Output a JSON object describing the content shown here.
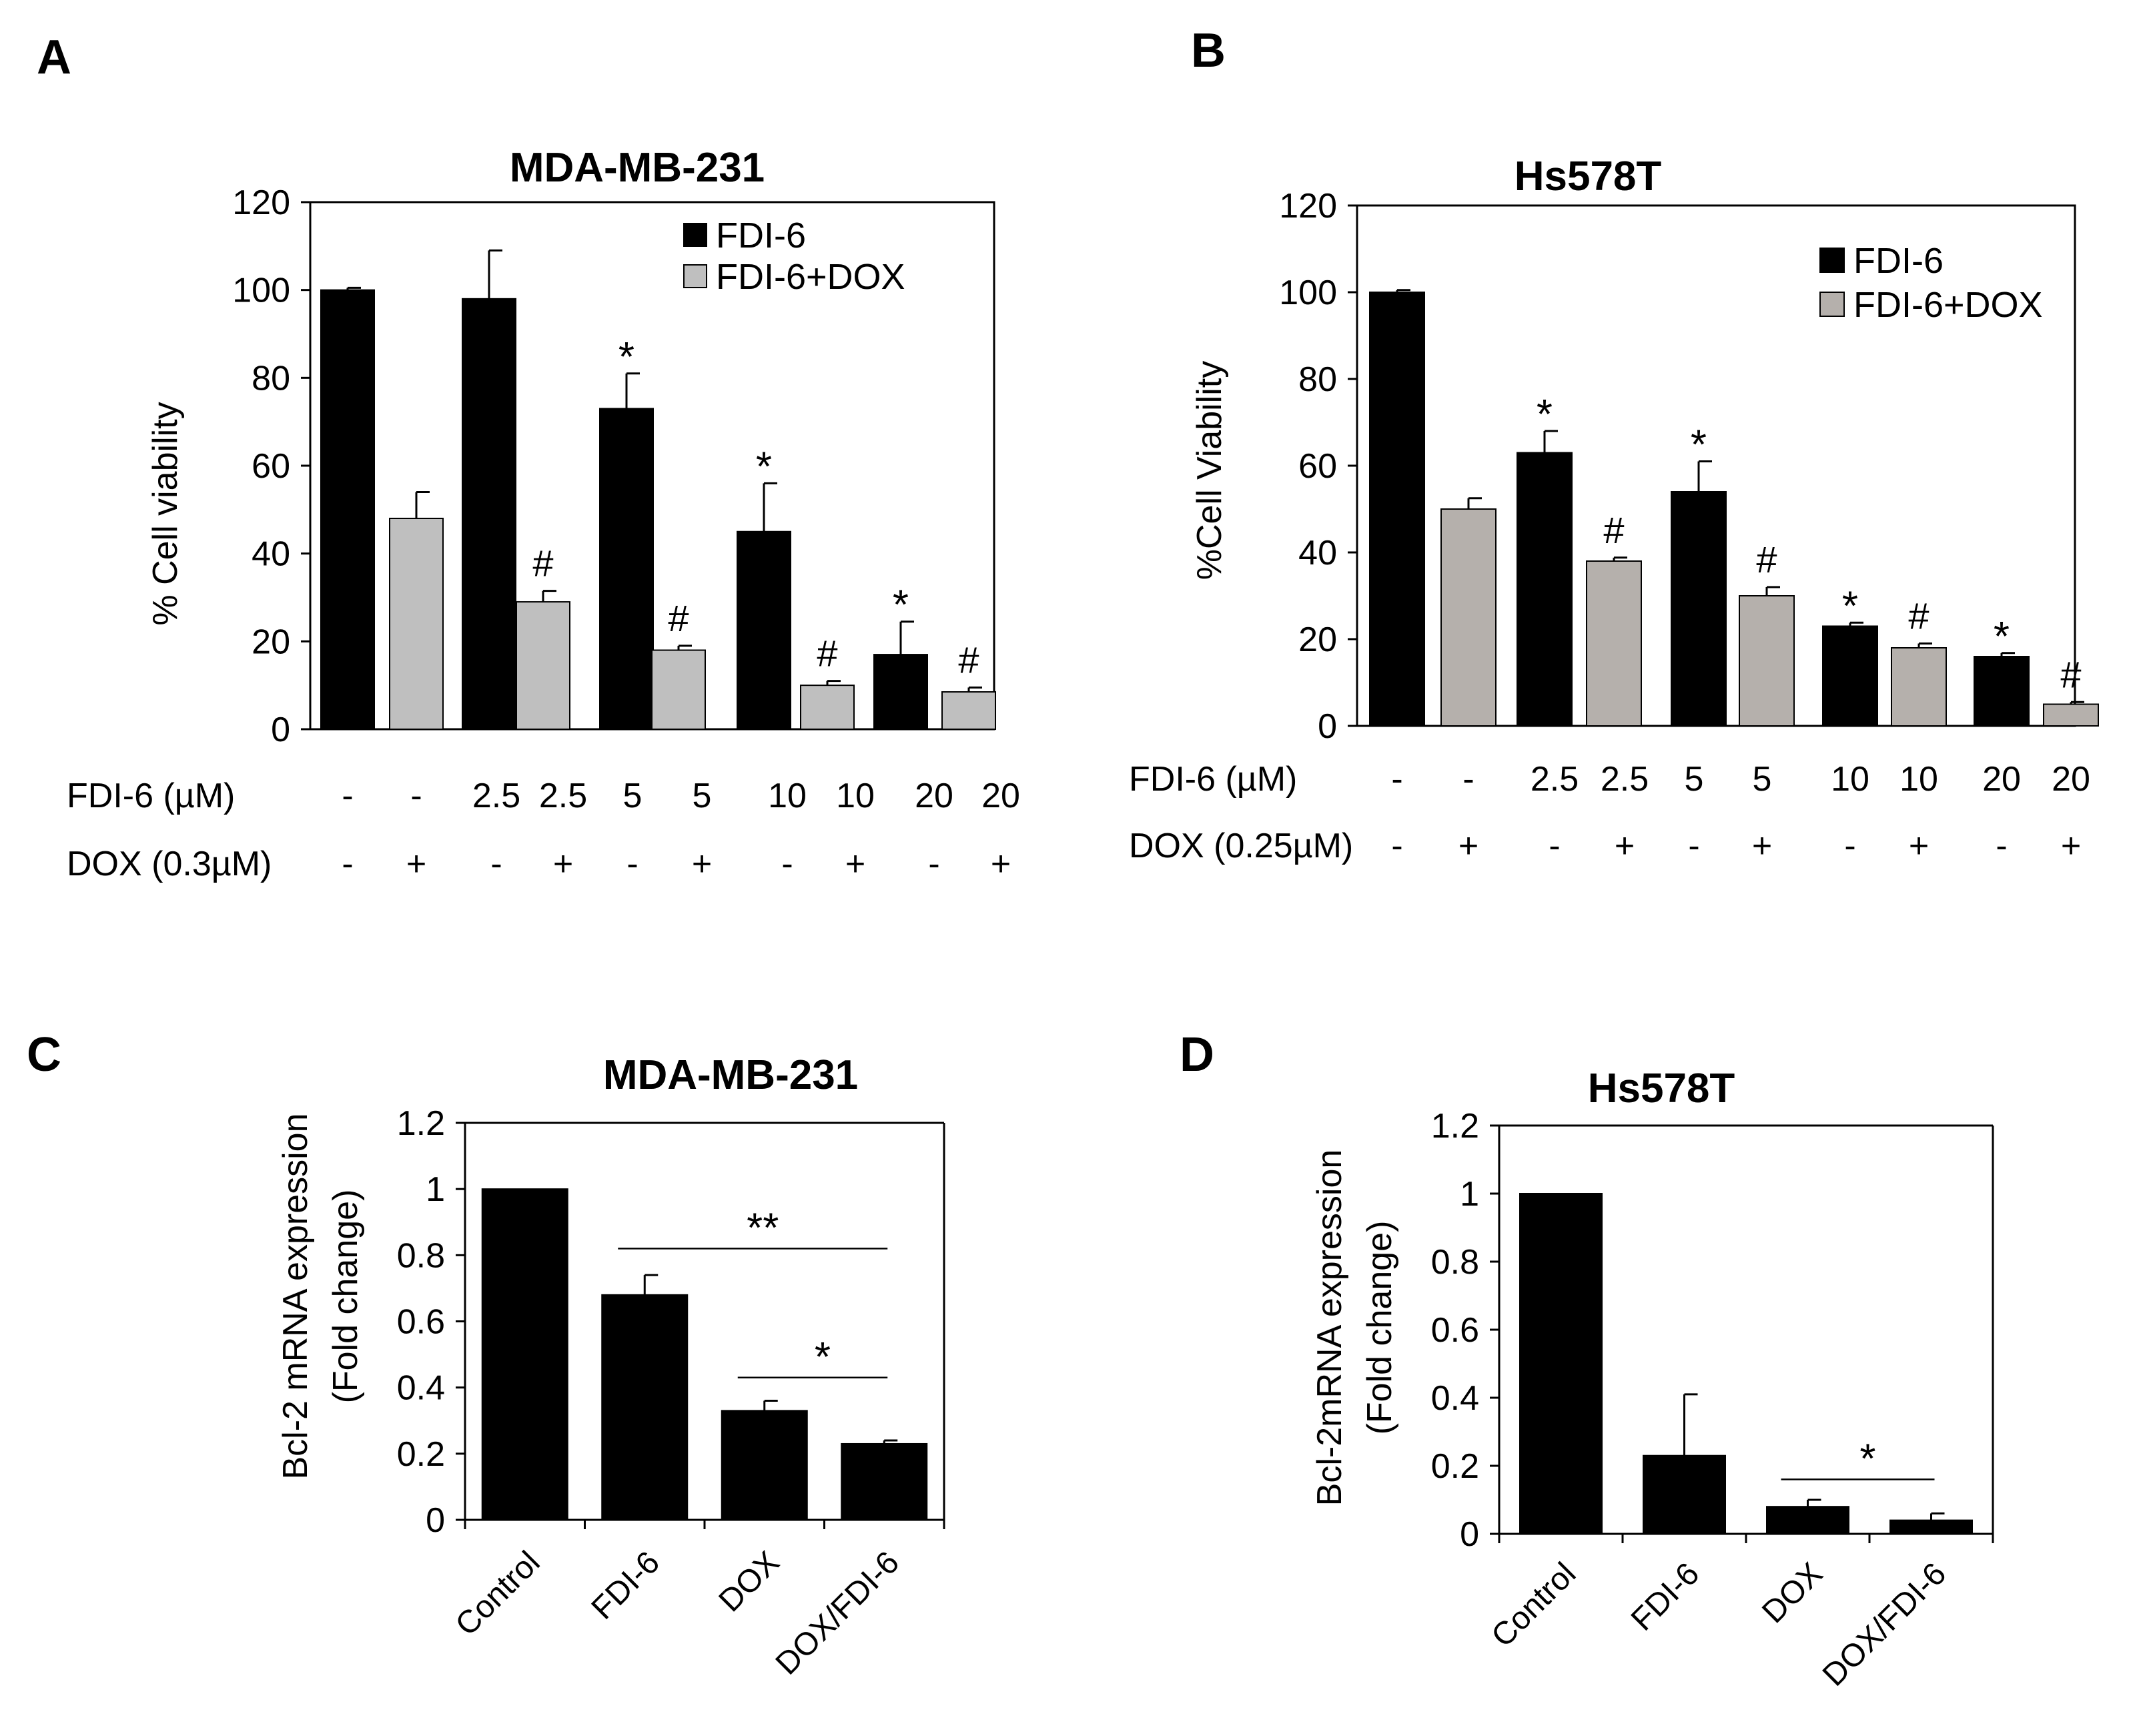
{
  "chart_data": [
    {
      "panel": "A",
      "type": "bar",
      "title": "MDA-MB-231",
      "ylabel": "% Cell viability",
      "ylim": [
        0,
        120
      ],
      "yticks": [
        "0",
        "20",
        "40",
        "60",
        "80",
        "100",
        "120"
      ],
      "legend": {
        "position": "top-right",
        "entries": [
          "FDI-6",
          "FDI-6+DOX"
        ]
      },
      "colors": {
        "FDI-6": "#000000",
        "FDI-6+DOX": "#bfbfbf"
      },
      "bars": [
        {
          "series": "FDI-6",
          "value": 100,
          "error": 0.5,
          "mark": ""
        },
        {
          "series": "FDI-6+DOX",
          "value": 48,
          "error": 6,
          "mark": ""
        },
        {
          "series": "FDI-6",
          "value": 98,
          "error": 11,
          "mark": ""
        },
        {
          "series": "FDI-6+DOX",
          "value": 29,
          "error": 2.5,
          "mark": "#"
        },
        {
          "series": "FDI-6",
          "value": 73,
          "error": 8,
          "mark": "*"
        },
        {
          "series": "FDI-6+DOX",
          "value": 18,
          "error": 1,
          "mark": "#"
        },
        {
          "series": "FDI-6",
          "value": 45,
          "error": 11,
          "mark": "*"
        },
        {
          "series": "FDI-6+DOX",
          "value": 10,
          "error": 1,
          "mark": "#"
        },
        {
          "series": "FDI-6",
          "value": 17,
          "error": 7.5,
          "mark": "*"
        },
        {
          "series": "FDI-6+DOX",
          "value": 8.5,
          "error": 1,
          "mark": "#"
        }
      ],
      "conditions": [
        {
          "label": "FDI-6 (µM)",
          "values": [
            "-",
            "-",
            "2.5",
            "2.5",
            "5",
            "5",
            "10",
            "10",
            "20",
            "20"
          ]
        },
        {
          "label": "DOX (0.3µM)",
          "values": [
            "-",
            "+",
            "-",
            "+",
            "-",
            "+",
            "-",
            "+",
            "-",
            "+"
          ]
        }
      ]
    },
    {
      "panel": "B",
      "type": "bar",
      "title": "Hs578T",
      "ylabel": "%Cell Viability",
      "ylim": [
        0,
        120
      ],
      "yticks": [
        "0",
        "20",
        "40",
        "60",
        "80",
        "100",
        "120"
      ],
      "legend": {
        "position": "top-right",
        "entries": [
          "FDI-6",
          "FDI-6+DOX"
        ]
      },
      "colors": {
        "FDI-6": "#000000",
        "FDI-6+DOX": "#b5b0ac"
      },
      "bars": [
        {
          "series": "FDI-6",
          "value": 100,
          "error": 0.5,
          "mark": ""
        },
        {
          "series": "FDI-6+DOX",
          "value": 50,
          "error": 2.5,
          "mark": ""
        },
        {
          "series": "FDI-6",
          "value": 63,
          "error": 5,
          "mark": "*"
        },
        {
          "series": "FDI-6+DOX",
          "value": 38,
          "error": 0.8,
          "mark": "#"
        },
        {
          "series": "FDI-6",
          "value": 54,
          "error": 7,
          "mark": "*"
        },
        {
          "series": "FDI-6+DOX",
          "value": 30,
          "error": 2,
          "mark": "#"
        },
        {
          "series": "FDI-6",
          "value": 23,
          "error": 0.8,
          "mark": "*"
        },
        {
          "series": "FDI-6+DOX",
          "value": 18,
          "error": 1,
          "mark": "#"
        },
        {
          "series": "FDI-6",
          "value": 16,
          "error": 0.8,
          "mark": "*"
        },
        {
          "series": "FDI-6+DOX",
          "value": 5,
          "error": 0.5,
          "mark": "#"
        }
      ],
      "conditions": [
        {
          "label": "FDI-6 (µM)",
          "values": [
            "-",
            "-",
            "2.5",
            "2.5",
            "5",
            "5",
            "10",
            "10",
            "20",
            "20"
          ]
        },
        {
          "label": "DOX (0.25µM)",
          "values": [
            "-",
            "+",
            "-",
            "+",
            "-",
            "+",
            "-",
            "+",
            "-",
            "+"
          ]
        }
      ]
    },
    {
      "panel": "C",
      "type": "bar",
      "title": "MDA-MB-231",
      "ylabel": [
        "Bcl-2 mRNA expression",
        "(Fold change)"
      ],
      "ylim": [
        0,
        1.2
      ],
      "yticks": [
        "0",
        "0.2",
        "0.4",
        "0.6",
        "0.8",
        "1",
        "1.2"
      ],
      "categories": [
        "Control",
        "FDI-6",
        "DOX",
        "DOX/FDI-6"
      ],
      "values": [
        1.0,
        0.68,
        0.33,
        0.23
      ],
      "errors": [
        0,
        0.06,
        0.03,
        0.01
      ],
      "color": "#000000",
      "significance": [
        {
          "from": 1,
          "to": 3,
          "value": 0.82,
          "label": "**"
        },
        {
          "from": 2,
          "to": 3,
          "value": 0.43,
          "label": "*"
        }
      ]
    },
    {
      "panel": "D",
      "type": "bar",
      "title": "Hs578T",
      "ylabel": [
        "Bcl-2mRNA expression",
        "(Fold change)"
      ],
      "ylim": [
        0,
        1.2
      ],
      "yticks": [
        "0",
        "0.2",
        "0.4",
        "0.6",
        "0.8",
        "1",
        "1.2"
      ],
      "categories": [
        "Control",
        "FDI-6",
        "DOX",
        "DOX/FDI-6"
      ],
      "values": [
        1.0,
        0.23,
        0.08,
        0.04
      ],
      "errors": [
        0,
        0.18,
        0.02,
        0.02
      ],
      "color": "#000000",
      "significance": [
        {
          "from": 2,
          "to": 3,
          "value": 0.16,
          "label": "*"
        }
      ]
    }
  ]
}
